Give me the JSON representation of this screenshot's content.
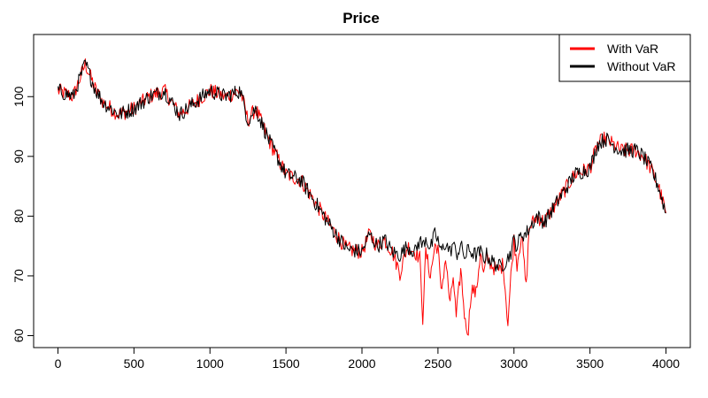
{
  "chart_data": {
    "type": "line",
    "title": "Price",
    "xlabel": "",
    "ylabel": "",
    "xlim": [
      -160,
      4160
    ],
    "ylim": [
      58,
      110.4
    ],
    "x_ticks": [
      0,
      500,
      1000,
      1500,
      2000,
      2500,
      3000,
      3500,
      4000
    ],
    "y_ticks": [
      60,
      70,
      80,
      90,
      100
    ],
    "grid": false,
    "legend_position": "top-right",
    "series": [
      {
        "name": "With VaR",
        "color": "#ff0000",
        "x": [
          0,
          100,
          180,
          250,
          300,
          400,
          500,
          600,
          700,
          800,
          900,
          1000,
          1100,
          1200,
          1250,
          1300,
          1400,
          1500,
          1600,
          1700,
          1800,
          1900,
          2000,
          2050,
          2100,
          2150,
          2200,
          2250,
          2300,
          2350,
          2380,
          2400,
          2420,
          2450,
          2480,
          2500,
          2520,
          2550,
          2580,
          2600,
          2620,
          2650,
          2680,
          2700,
          2720,
          2750,
          2780,
          2800,
          2820,
          2850,
          2880,
          2900,
          2930,
          2960,
          2980,
          3000,
          3020,
          3050,
          3080,
          3100,
          3150,
          3200,
          3300,
          3400,
          3500,
          3550,
          3600,
          3700,
          3800,
          3850,
          3900,
          3950,
          4000
        ],
        "y": [
          101,
          100,
          105.5,
          101,
          99,
          97,
          98,
          100,
          101,
          97,
          99,
          101,
          100,
          101,
          96,
          98,
          92,
          87,
          86,
          82,
          78,
          74.5,
          74,
          77,
          75,
          76,
          74,
          70.5,
          75,
          74,
          73,
          63,
          74,
          70,
          75,
          75,
          67,
          73,
          65,
          70,
          63,
          71,
          62,
          61,
          68,
          67,
          74,
          70,
          73,
          72,
          71,
          71,
          72,
          62,
          70,
          76,
          72,
          77,
          68,
          78,
          80,
          79,
          83,
          87,
          88,
          92,
          93,
          91,
          91,
          90,
          88,
          85,
          80.5
        ]
      },
      {
        "name": "Without VaR",
        "color": "#000000",
        "x": [
          0,
          100,
          180,
          250,
          300,
          400,
          500,
          600,
          700,
          800,
          900,
          1000,
          1100,
          1200,
          1250,
          1300,
          1400,
          1500,
          1600,
          1700,
          1800,
          1900,
          2000,
          2050,
          2100,
          2150,
          2200,
          2250,
          2300,
          2350,
          2380,
          2400,
          2420,
          2450,
          2480,
          2500,
          2520,
          2550,
          2580,
          2600,
          2620,
          2650,
          2680,
          2700,
          2720,
          2750,
          2780,
          2800,
          2820,
          2850,
          2880,
          2900,
          2930,
          2960,
          2980,
          3000,
          3020,
          3050,
          3080,
          3100,
          3150,
          3200,
          3300,
          3400,
          3500,
          3550,
          3600,
          3700,
          3800,
          3850,
          3900,
          3950,
          4000
        ],
        "y": [
          101,
          100,
          105.5,
          101,
          99,
          97,
          98,
          100,
          101,
          97,
          99,
          101,
          100,
          101,
          96,
          98,
          92,
          87,
          86,
          82,
          78,
          74.5,
          74,
          77,
          75,
          76,
          74,
          73.5,
          75,
          74,
          76,
          75,
          76.5,
          74.5,
          77,
          76,
          74,
          75.5,
          74,
          75.5,
          73.5,
          75,
          73,
          74.5,
          74,
          73.5,
          74,
          73,
          73.5,
          72.5,
          72,
          71.5,
          72,
          73,
          74,
          76,
          75,
          77,
          77,
          78,
          80,
          79,
          83,
          87,
          88,
          92,
          93,
          91,
          91,
          90,
          88,
          85,
          80.5
        ]
      }
    ]
  }
}
